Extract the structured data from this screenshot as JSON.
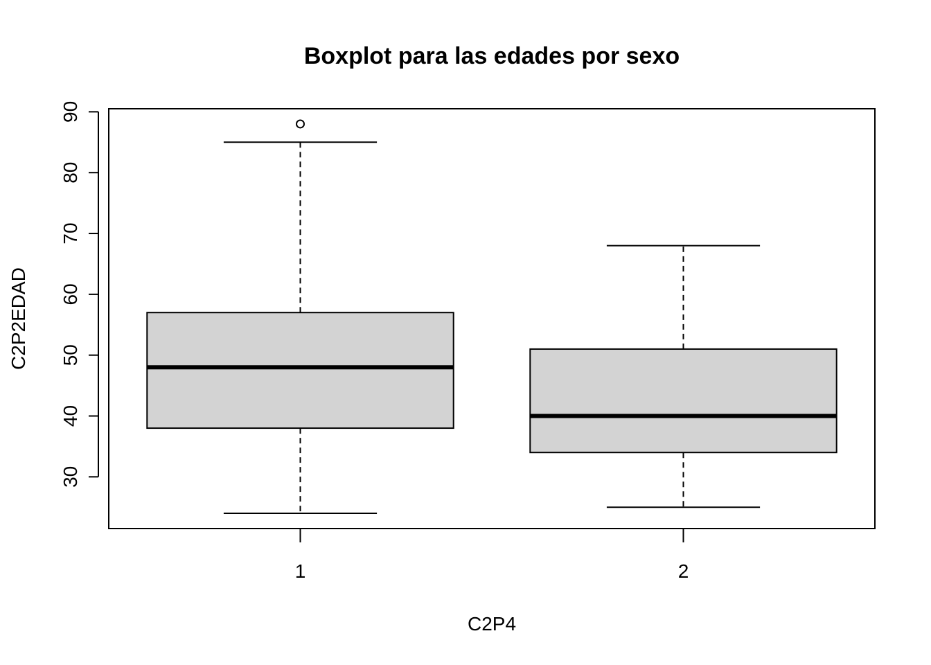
{
  "chart_data": {
    "type": "boxplot",
    "title": "Boxplot para las edades por sexo",
    "xlabel": "C2P4",
    "ylabel": "C2P2EDAD",
    "ylim": [
      21.5,
      90.5
    ],
    "y_ticks": [
      "30",
      "40",
      "50",
      "60",
      "70",
      "80",
      "90"
    ],
    "categories": [
      "1",
      "2"
    ],
    "boxes": [
      {
        "category": "1",
        "whisker_low": 24,
        "q1": 38,
        "median": 48,
        "q3": 57,
        "whisker_high": 85,
        "outliers": [
          88
        ]
      },
      {
        "category": "2",
        "whisker_low": 25,
        "q1": 34,
        "median": 40,
        "q3": 51,
        "whisker_high": 68,
        "outliers": []
      }
    ],
    "box_fill": "#d3d3d3",
    "line_color": "#000000"
  }
}
